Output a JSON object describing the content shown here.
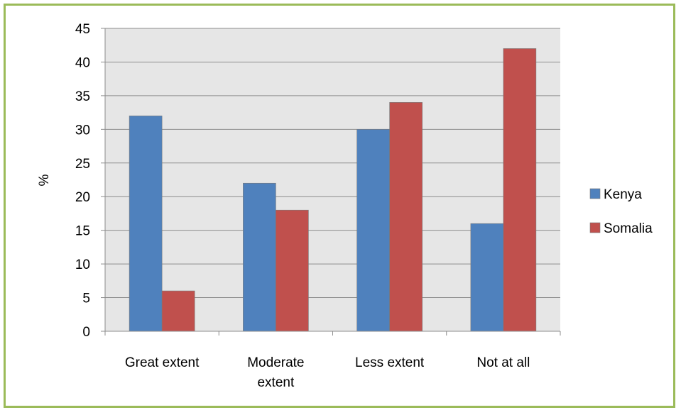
{
  "chart_data": {
    "type": "bar",
    "categories": [
      [
        "Great extent"
      ],
      [
        "Moderate",
        "extent"
      ],
      [
        "Less extent"
      ],
      [
        "Not at all"
      ]
    ],
    "series": [
      {
        "name": "Kenya",
        "color": "#4f81bd",
        "values": [
          32,
          22,
          30,
          16
        ]
      },
      {
        "name": "Somalia",
        "color": "#c0504d",
        "values": [
          6,
          18,
          34,
          42
        ]
      }
    ],
    "ylabel": "%",
    "xlabel": "",
    "ylim": [
      0,
      45
    ],
    "yticks": [
      0,
      5,
      10,
      15,
      20,
      25,
      30,
      35,
      40,
      45
    ],
    "grid": true,
    "legend_position": "right",
    "plot_background": "#e6e6e6",
    "frame_color": "#9bbb59"
  }
}
